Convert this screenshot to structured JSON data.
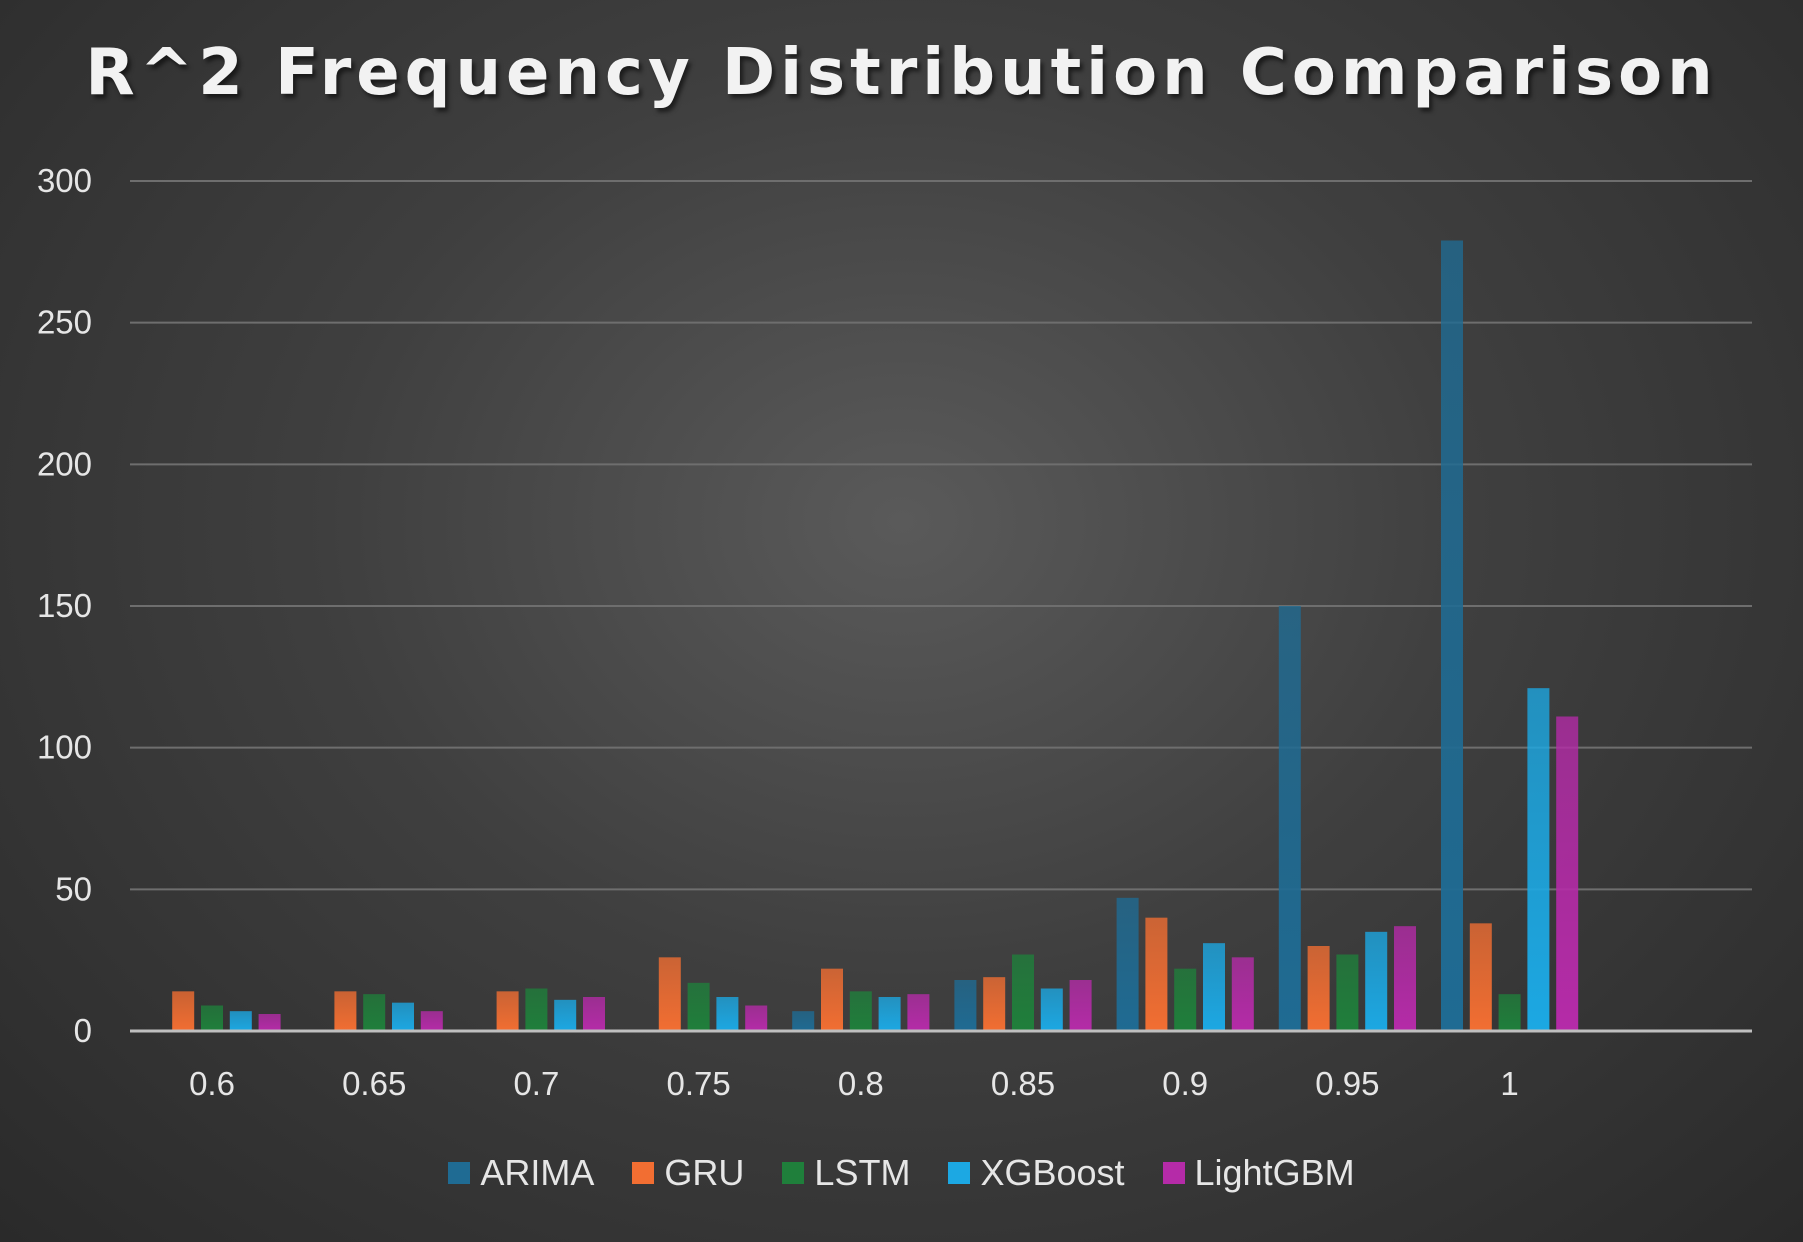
{
  "chart_data": {
    "type": "bar",
    "title": "R^2 Frequency Distribution Comparison",
    "xlabel": "",
    "ylabel": "",
    "categories": [
      "0.6",
      "0.65",
      "0.7",
      "0.75",
      "0.8",
      "0.85",
      "0.9",
      "0.95",
      "1"
    ],
    "ylim": [
      0,
      300
    ],
    "yticks": [
      0,
      50,
      100,
      150,
      200,
      250,
      300
    ],
    "grid": true,
    "legend_position": "bottom",
    "series": [
      {
        "name": "ARIMA",
        "color": "#1f6b93",
        "values": [
          0,
          0,
          0,
          0,
          7,
          18,
          47,
          150,
          279
        ]
      },
      {
        "name": "GRU",
        "color": "#f26e32",
        "values": [
          14,
          14,
          14,
          26,
          22,
          19,
          40,
          30,
          38
        ]
      },
      {
        "name": "LSTM",
        "color": "#1f7f3b",
        "values": [
          9,
          13,
          15,
          17,
          14,
          27,
          22,
          27,
          13
        ]
      },
      {
        "name": "XGBoost",
        "color": "#1ca8e3",
        "values": [
          7,
          10,
          11,
          12,
          12,
          15,
          31,
          35,
          121
        ]
      },
      {
        "name": "LightGBM",
        "color": "#b52ba8",
        "values": [
          6,
          7,
          12,
          9,
          13,
          18,
          26,
          37,
          111
        ]
      }
    ]
  }
}
